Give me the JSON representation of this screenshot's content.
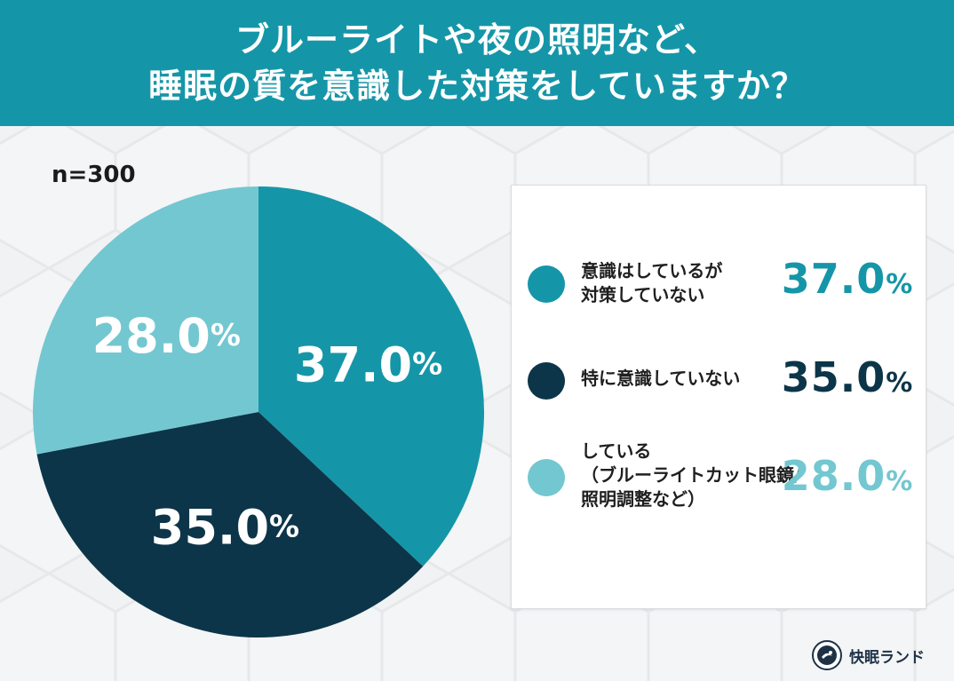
{
  "header": {
    "title_line1": "ブルーライトや夜の照明など、",
    "title_line2": "睡眠の質を意識した対策をしていますか？"
  },
  "sample_size": "n=300",
  "chart_data": {
    "type": "pie",
    "title": "ブルーライトや夜の照明など、睡眠の質を意識した対策をしていますか？",
    "unit": "%",
    "slices": [
      {
        "label": "意識はしているが対策していない",
        "value": 37.0,
        "display": "37.0",
        "color": "#1596a8"
      },
      {
        "label": "特に意識していない",
        "value": 35.0,
        "display": "35.0",
        "color": "#0c3549"
      },
      {
        "label": "している（ブルーライトカット眼鏡/照明調整など）",
        "value": 28.0,
        "display": "28.0",
        "color": "#73c7d1"
      }
    ]
  },
  "legend": {
    "items": [
      {
        "lines": [
          "意識はしているが",
          "対策していない"
        ],
        "value": "37.0",
        "unit": "%"
      },
      {
        "lines": [
          "特に意識していない"
        ],
        "value": "35.0",
        "unit": "%"
      },
      {
        "lines": [
          "している",
          "（ブルーライトカット眼鏡/",
          "照明調整など）"
        ],
        "value": "28.0",
        "unit": "%"
      }
    ]
  },
  "brand": {
    "name": "快眠ランド",
    "icon": "kaimin-land-logo-icon"
  }
}
